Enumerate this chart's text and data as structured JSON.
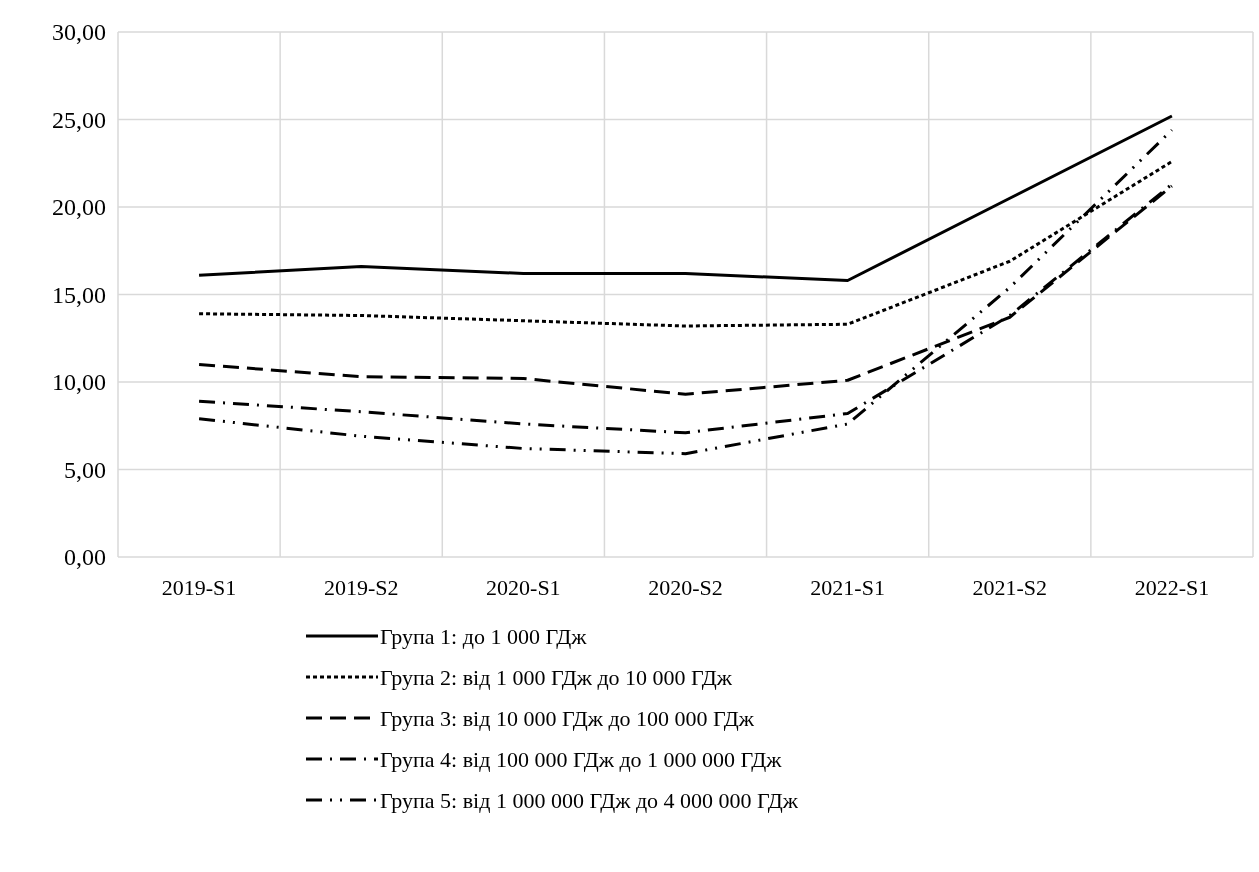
{
  "chart_data": {
    "type": "line",
    "categories": [
      "2019-S1",
      "2019-S2",
      "2020-S1",
      "2020-S2",
      "2021-S1",
      "2021-S2",
      "2022-S1"
    ],
    "ylim": [
      0,
      30
    ],
    "yticks": [
      {
        "value": 0,
        "label": "0,00"
      },
      {
        "value": 5,
        "label": "5,00"
      },
      {
        "value": 10,
        "label": "10,00"
      },
      {
        "value": 15,
        "label": "15,00"
      },
      {
        "value": 20,
        "label": "20,00"
      },
      {
        "value": 25,
        "label": "25,00"
      },
      {
        "value": 30,
        "label": "30,00"
      }
    ],
    "grid": true,
    "legend": "bottom",
    "marker": "none",
    "series": [
      {
        "name": "Група 1: до 1 000 ГДж",
        "color": "#000000",
        "line_style": "solid",
        "values": [
          16.1,
          16.6,
          16.2,
          16.2,
          15.8,
          20.5,
          25.2
        ]
      },
      {
        "name": "Група 2: від 1 000 ГДж до 10 000 ГДж",
        "color": "#000000",
        "line_style": "dotted",
        "values": [
          13.9,
          13.8,
          13.5,
          13.2,
          13.3,
          16.9,
          22.6
        ]
      },
      {
        "name": "Група 3: від 10 000 ГДж до 100 000 ГДж",
        "color": "#000000",
        "line_style": "dashed",
        "values": [
          11.0,
          10.3,
          10.2,
          9.3,
          10.1,
          13.7,
          21.2
        ]
      },
      {
        "name": "Група 4: від 100 000 ГДж до 1 000 000 ГДж",
        "color": "#000000",
        "line_style": "dashdot",
        "values": [
          8.9,
          8.3,
          7.6,
          7.1,
          8.2,
          13.8,
          21.3
        ]
      },
      {
        "name": "Група 5: від 1 000 000 ГДж до 4 000 000 ГДж",
        "color": "#000000",
        "line_style": "dashdotdot",
        "values": [
          7.9,
          6.9,
          6.2,
          5.9,
          7.6,
          15.4,
          24.4
        ]
      }
    ]
  }
}
